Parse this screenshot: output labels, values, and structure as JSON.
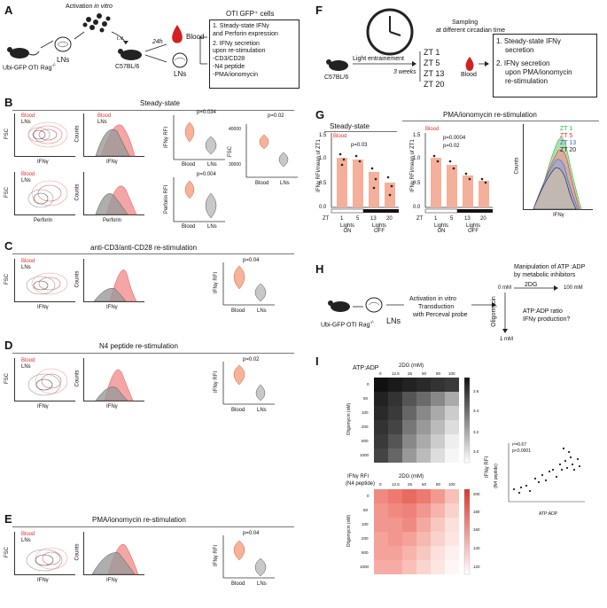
{
  "colors": {
    "blood": "#e8555a",
    "blood_fill": "#f4a6a6",
    "lns": "#555555",
    "lns_fill": "#9a9a9a",
    "zt1": "#2fb34a",
    "zt5": "#e03030",
    "zt13": "#3a64c8",
    "zt20": "#222222",
    "heat_grey_dark": "#1a1a1a",
    "heat_red": "#d9362e"
  },
  "panelA": {
    "label": "A",
    "activation": "Activation ",
    "in_vitro": "in vitro",
    "iv": "i.v.",
    "time": "24h",
    "mouse": "Ubi-GFP OTI Rag",
    "mouse_sup": "-/-",
    "lns": "LNs",
    "recipient": "C57BL/6",
    "blood": "Blood",
    "lns2": "LNs",
    "box_title": "OTI GFP⁺ cells",
    "box_line1": "1. Steady-state IFNγ",
    "box_line2": "and Perforin expression",
    "box_line3": "2. IFNγ secretion",
    "box_line4": "upon re-stimulation",
    "box_line5": "-CD3/CD28",
    "box_line6": "-N4 peptide",
    "box_line7": "-PMA/ionomycin"
  },
  "panelB": {
    "label": "B",
    "title": "Steady-state",
    "legend_blood": "Blood",
    "legend_lns": "LNs",
    "fsc": "FSC",
    "counts": "Counts",
    "ifng": "IFNγ",
    "perforin": "Perforin",
    "ifng_rfi": "IFNγ RFI",
    "perforin_rfi": "Perforin RFI",
    "p1": "p=0.034",
    "p2": "p=0.004",
    "p3": "p=0.02",
    "blood_x": "Blood",
    "lns_x": "LNs",
    "fsc_ticks": [
      "40000",
      "30000"
    ]
  },
  "panelC": {
    "label": "C",
    "title": "anti-CD3/anti-CD28 re-stimulation",
    "p": "p=0.04"
  },
  "panelD": {
    "label": "D",
    "title": "N4 peptide re-stimulation",
    "p": "p=0.02"
  },
  "panelE": {
    "label": "E",
    "title": "PMA/ionomycin re-stimulation",
    "p": "p=0.04"
  },
  "panelF": {
    "label": "F",
    "sampling1": "Sampling",
    "sampling2": "at different circadian time",
    "light": "Light entrainement",
    "weeks": "3 weeks",
    "mouse": "C57BL/6",
    "zt": [
      "ZT 1",
      "ZT 5",
      "ZT 13",
      "ZT 20"
    ],
    "blood": "Blood",
    "box1": "1. Steady-state IFNγ",
    "box1b": "secretion",
    "box2": "2. IFNγ secretion",
    "box2b": "upon PMA/ionomycin",
    "box2c": "re-stimulation"
  },
  "panelG": {
    "label": "G",
    "title1": "Steady-state",
    "title2": "PMA/ionomycin re-stimulation",
    "blood": "Blood",
    "ylab1": "IFNγ RFI/mean of ZT1",
    "ylab2": "IFNγ RFI/mean of ZT1",
    "p1": "p=0.03",
    "p2": "p=0.0004",
    "p3": "p=0.02",
    "yticks": [
      "1.5",
      "1.0",
      "0.5",
      "0.0"
    ],
    "zt": "ZT",
    "zt_vals": [
      "1",
      "5",
      "13",
      "20"
    ],
    "lights_on": "Lights ON",
    "lights_off": "Lights OFF",
    "counts": "Counts",
    "ifng": "IFNγ",
    "legend": [
      "ZT 1",
      "ZT 5",
      "ZT 13",
      "ZT 20"
    ]
  },
  "panelH": {
    "label": "H",
    "mouse": "Ubi-GFP OTI Rag",
    "mouse_sup": "-/-",
    "lns": "LNs",
    "act1": "Activation in vitro",
    "act2": "Transduction",
    "act3": "with Perceval probe",
    "manip1": "Manipulation of ATP :ADP",
    "manip2": "by metabolic inhibitors",
    "dg": "2DG",
    "zero": "0 mM",
    "hundred": "100 mM",
    "oligo": "Oligomycin",
    "one": "1 mM",
    "q1": "ATP:ADP ratio",
    "q2": "IFNγ production?"
  },
  "panelI": {
    "label": "I",
    "atpadp": "ATP:ADP",
    "dg_mm": "2DG  (mM)",
    "cols": [
      "0",
      "12.5",
      "25",
      "50",
      "80",
      "100"
    ],
    "rows": [
      "0",
      "50",
      "100",
      "200",
      "500",
      "1000"
    ],
    "oligo": "Oligomycin (nM)",
    "ifng_rfi": "IFNγ RFI",
    "n4": "(N4 peptide)",
    "grey_scale": [
      "3.6",
      "3.4",
      "3.2",
      "3.0"
    ],
    "red_scale": [
      "200",
      "180",
      "160",
      "140",
      "120"
    ],
    "r2": "r²=0.67",
    "pval": "p<0.0001",
    "scatter_y": "IFNγ RFI",
    "scatter_y2": "(N4 peptide)",
    "scatter_x": "ATP:ADP"
  }
}
